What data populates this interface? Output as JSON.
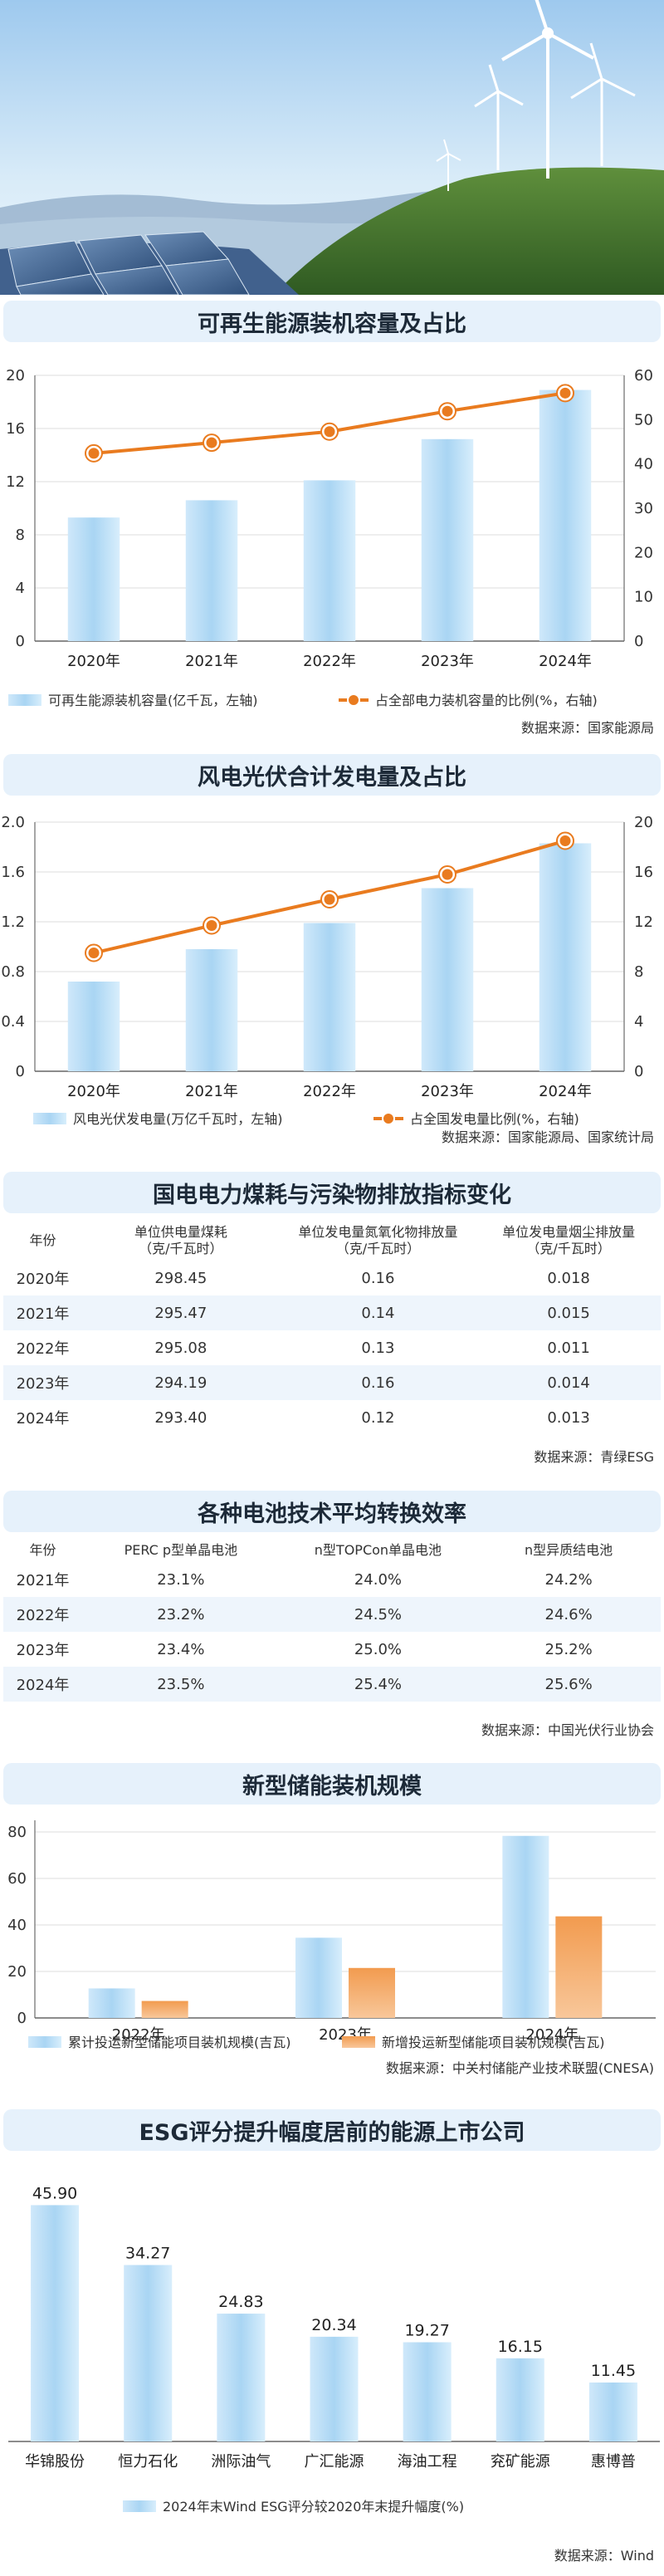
{
  "sections": [
    {
      "title": "可再生能源装机容量及占比",
      "source": "数据来源：国家能源局",
      "legend": [
        "可再生能源装机容量(亿千瓦，左轴)",
        "占全部电力装机容量的比例(%，右轴)"
      ]
    },
    {
      "title": "风电光伏合计发电量及占比",
      "source": "数据来源：国家能源局、国家统计局",
      "legend": [
        "风电光伏发电量(万亿千瓦时，左轴)",
        "占全国发电量比例(%，右轴)"
      ]
    },
    {
      "title": "国电电力煤耗与污染物排放指标变化",
      "source": "数据来源：青绿ESG"
    },
    {
      "title": "各种电池技术平均转换效率",
      "source": "数据来源：中国光伏行业协会"
    },
    {
      "title": "新型储能装机规模",
      "source": "数据来源：中关村储能产业技术联盟(CNESA)",
      "legend": [
        "累计投运新型储能项目装机规模(吉瓦)",
        "新增投运新型储能项目装机规模(吉瓦)"
      ]
    },
    {
      "title": "ESG评分提升幅度居前的能源上市公司",
      "source": "数据来源：Wind",
      "legend": [
        "2024年末Wind ESG评分较2020年末提升幅度(%)"
      ]
    }
  ],
  "colors": {
    "bar": "#a8d4f2",
    "bar_light": "#d9eefb",
    "line": "#e97b1f",
    "orange_bar": "#f2a35b"
  },
  "chart_data": [
    {
      "type": "bar",
      "categories": [
        "2020年",
        "2021年",
        "2022年",
        "2023年",
        "2024年"
      ],
      "series": [
        {
          "name": "可再生能源装机容量(亿千瓦，左轴)",
          "values": [
            9.3,
            10.6,
            12.1,
            15.2,
            18.9
          ],
          "axis": "left"
        },
        {
          "name": "占全部电力装机容量的比例(%，右轴)",
          "values": [
            42.4,
            44.8,
            47.3,
            51.9,
            56.0
          ],
          "axis": "right",
          "type": "line"
        }
      ],
      "yleft": {
        "ticks": [
          "0",
          "4",
          "8",
          "12",
          "16",
          "20"
        ],
        "range": [
          0,
          20
        ]
      },
      "yright": {
        "ticks": [
          "0",
          "10",
          "20",
          "30",
          "40",
          "50",
          "60"
        ],
        "range": [
          0,
          60
        ]
      }
    },
    {
      "type": "bar",
      "categories": [
        "2020年",
        "2021年",
        "2022年",
        "2023年",
        "2024年"
      ],
      "series": [
        {
          "name": "风电光伏发电量(万亿千瓦时，左轴)",
          "values": [
            0.72,
            0.98,
            1.19,
            1.47,
            1.83
          ],
          "axis": "left"
        },
        {
          "name": "占全国发电量比例(%，右轴)",
          "values": [
            9.5,
            11.7,
            13.8,
            15.8,
            18.5
          ],
          "axis": "right",
          "type": "line"
        }
      ],
      "yleft": {
        "ticks": [
          "0",
          "0.4",
          "0.8",
          "1.2",
          "1.6",
          "2.0"
        ],
        "range": [
          0,
          2.0
        ]
      },
      "yright": {
        "ticks": [
          "0",
          "4",
          "8",
          "12",
          "16",
          "20"
        ],
        "range": [
          0,
          20
        ]
      }
    },
    {
      "type": "table",
      "headers": [
        "年份",
        "单位供电量煤耗\n（克/千瓦时）",
        "单位发电量氮氧化物排放量\n（克/千瓦时）",
        "单位发电量烟尘排放量\n（克/千瓦时）"
      ],
      "rows": [
        [
          "2020年",
          "298.45",
          "0.16",
          "0.018"
        ],
        [
          "2021年",
          "295.47",
          "0.14",
          "0.015"
        ],
        [
          "2022年",
          "295.08",
          "0.13",
          "0.011"
        ],
        [
          "2023年",
          "294.19",
          "0.16",
          "0.014"
        ],
        [
          "2024年",
          "293.40",
          "0.12",
          "0.013"
        ]
      ]
    },
    {
      "type": "table",
      "headers": [
        "年份",
        "PERC p型单晶电池",
        "n型TOPCon单晶电池",
        "n型异质结电池"
      ],
      "rows": [
        [
          "2021年",
          "23.1%",
          "24.0%",
          "24.2%"
        ],
        [
          "2022年",
          "23.2%",
          "24.5%",
          "24.6%"
        ],
        [
          "2023年",
          "23.4%",
          "25.0%",
          "25.2%"
        ],
        [
          "2024年",
          "23.5%",
          "25.4%",
          "25.6%"
        ]
      ]
    },
    {
      "type": "bar",
      "categories": [
        "2022年",
        "2023年",
        "2024年"
      ],
      "series": [
        {
          "name": "累计投运新型储能项目装机规模(吉瓦)",
          "values": [
            12.7,
            34.5,
            78.3
          ]
        },
        {
          "name": "新增投运新型储能项目装机规模(吉瓦)",
          "values": [
            7.3,
            21.5,
            43.7
          ]
        }
      ],
      "yleft": {
        "ticks": [
          "0",
          "20",
          "40",
          "60",
          "80"
        ],
        "range": [
          0,
          85
        ]
      }
    },
    {
      "type": "bar",
      "categories": [
        "华锦股份",
        "恒力石化",
        "洲际油气",
        "广汇能源",
        "海油工程",
        "兖矿能源",
        "惠博普"
      ],
      "series": [
        {
          "name": "2024年末Wind ESG评分较2020年末提升幅度(%)",
          "values": [
            45.9,
            34.27,
            24.83,
            20.34,
            19.27,
            16.15,
            11.45
          ]
        }
      ],
      "labels": [
        "45.90",
        "34.27",
        "24.83",
        "20.34",
        "19.27",
        "16.15",
        "11.45"
      ],
      "range": [
        0,
        50
      ]
    }
  ]
}
